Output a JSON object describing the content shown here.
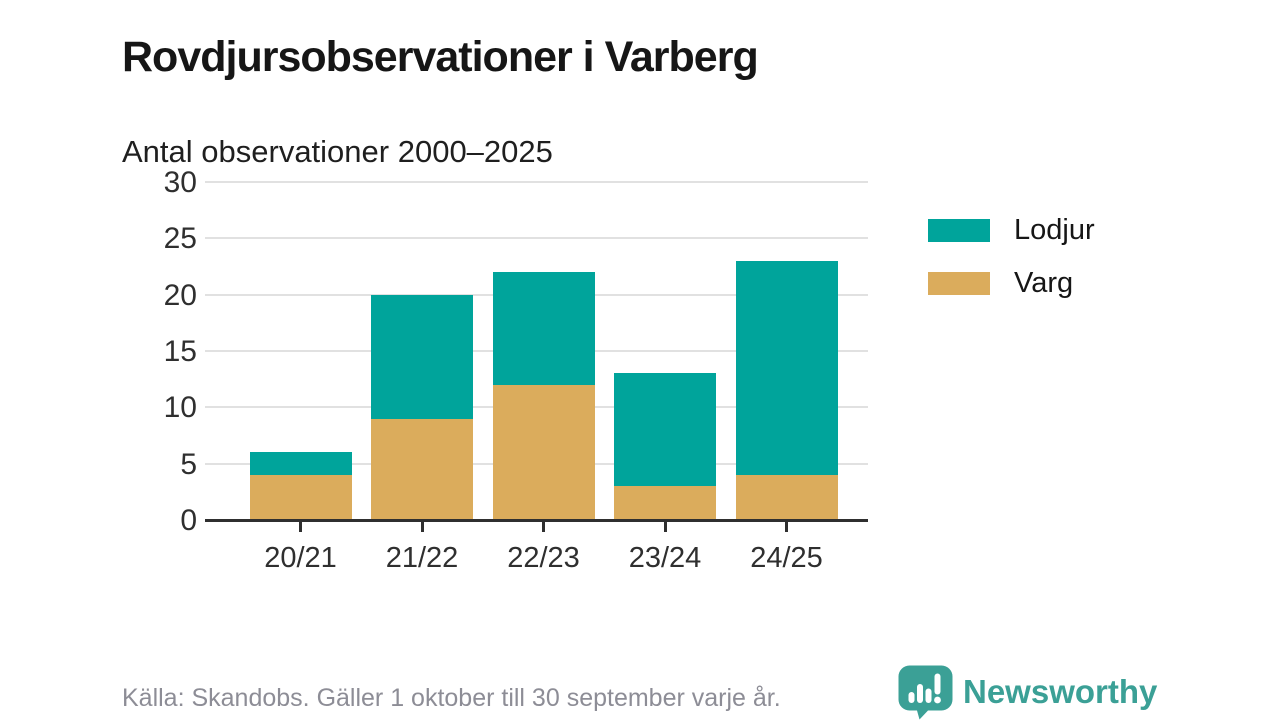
{
  "header": {
    "title": "Rovdjursobservationer i Varberg",
    "subtitle": "Antal observationer 2000–2025"
  },
  "chart_data": {
    "type": "bar",
    "stacked": true,
    "title": "Rovdjursobservationer i Varberg",
    "subtitle": "Antal observationer 2000–2025",
    "categories": [
      "20/21",
      "21/22",
      "22/23",
      "23/24",
      "24/25"
    ],
    "series": [
      {
        "name": "Varg",
        "color": "#dbac5c",
        "values": [
          4,
          9,
          12,
          3,
          4
        ]
      },
      {
        "name": "Lodjur",
        "color": "#00a49b",
        "values": [
          2,
          11,
          10,
          10,
          19
        ]
      }
    ],
    "totals": [
      6,
      20,
      22,
      13,
      23
    ],
    "legend": [
      {
        "label": "Lodjur",
        "color": "#00a49b"
      },
      {
        "label": "Varg",
        "color": "#dbac5c"
      }
    ],
    "legend_position": "right",
    "xlabel": "",
    "ylabel": "",
    "ylim": [
      0,
      30
    ],
    "yticks": [
      0,
      5,
      10,
      15,
      20,
      25,
      30
    ],
    "grid": true
  },
  "footer": {
    "source": "Källa: Skandobs. Gäller 1 oktober till 30 september varje år.",
    "brand": "Newsworthy"
  },
  "colors": {
    "lodjur": "#00a49b",
    "varg": "#dbac5c",
    "brand_teal": "#3ba096",
    "gridline": "#e1e1e1",
    "axis": "#2f2f2f",
    "text_dark": "#161616",
    "text_gray": "#8d8d96"
  }
}
